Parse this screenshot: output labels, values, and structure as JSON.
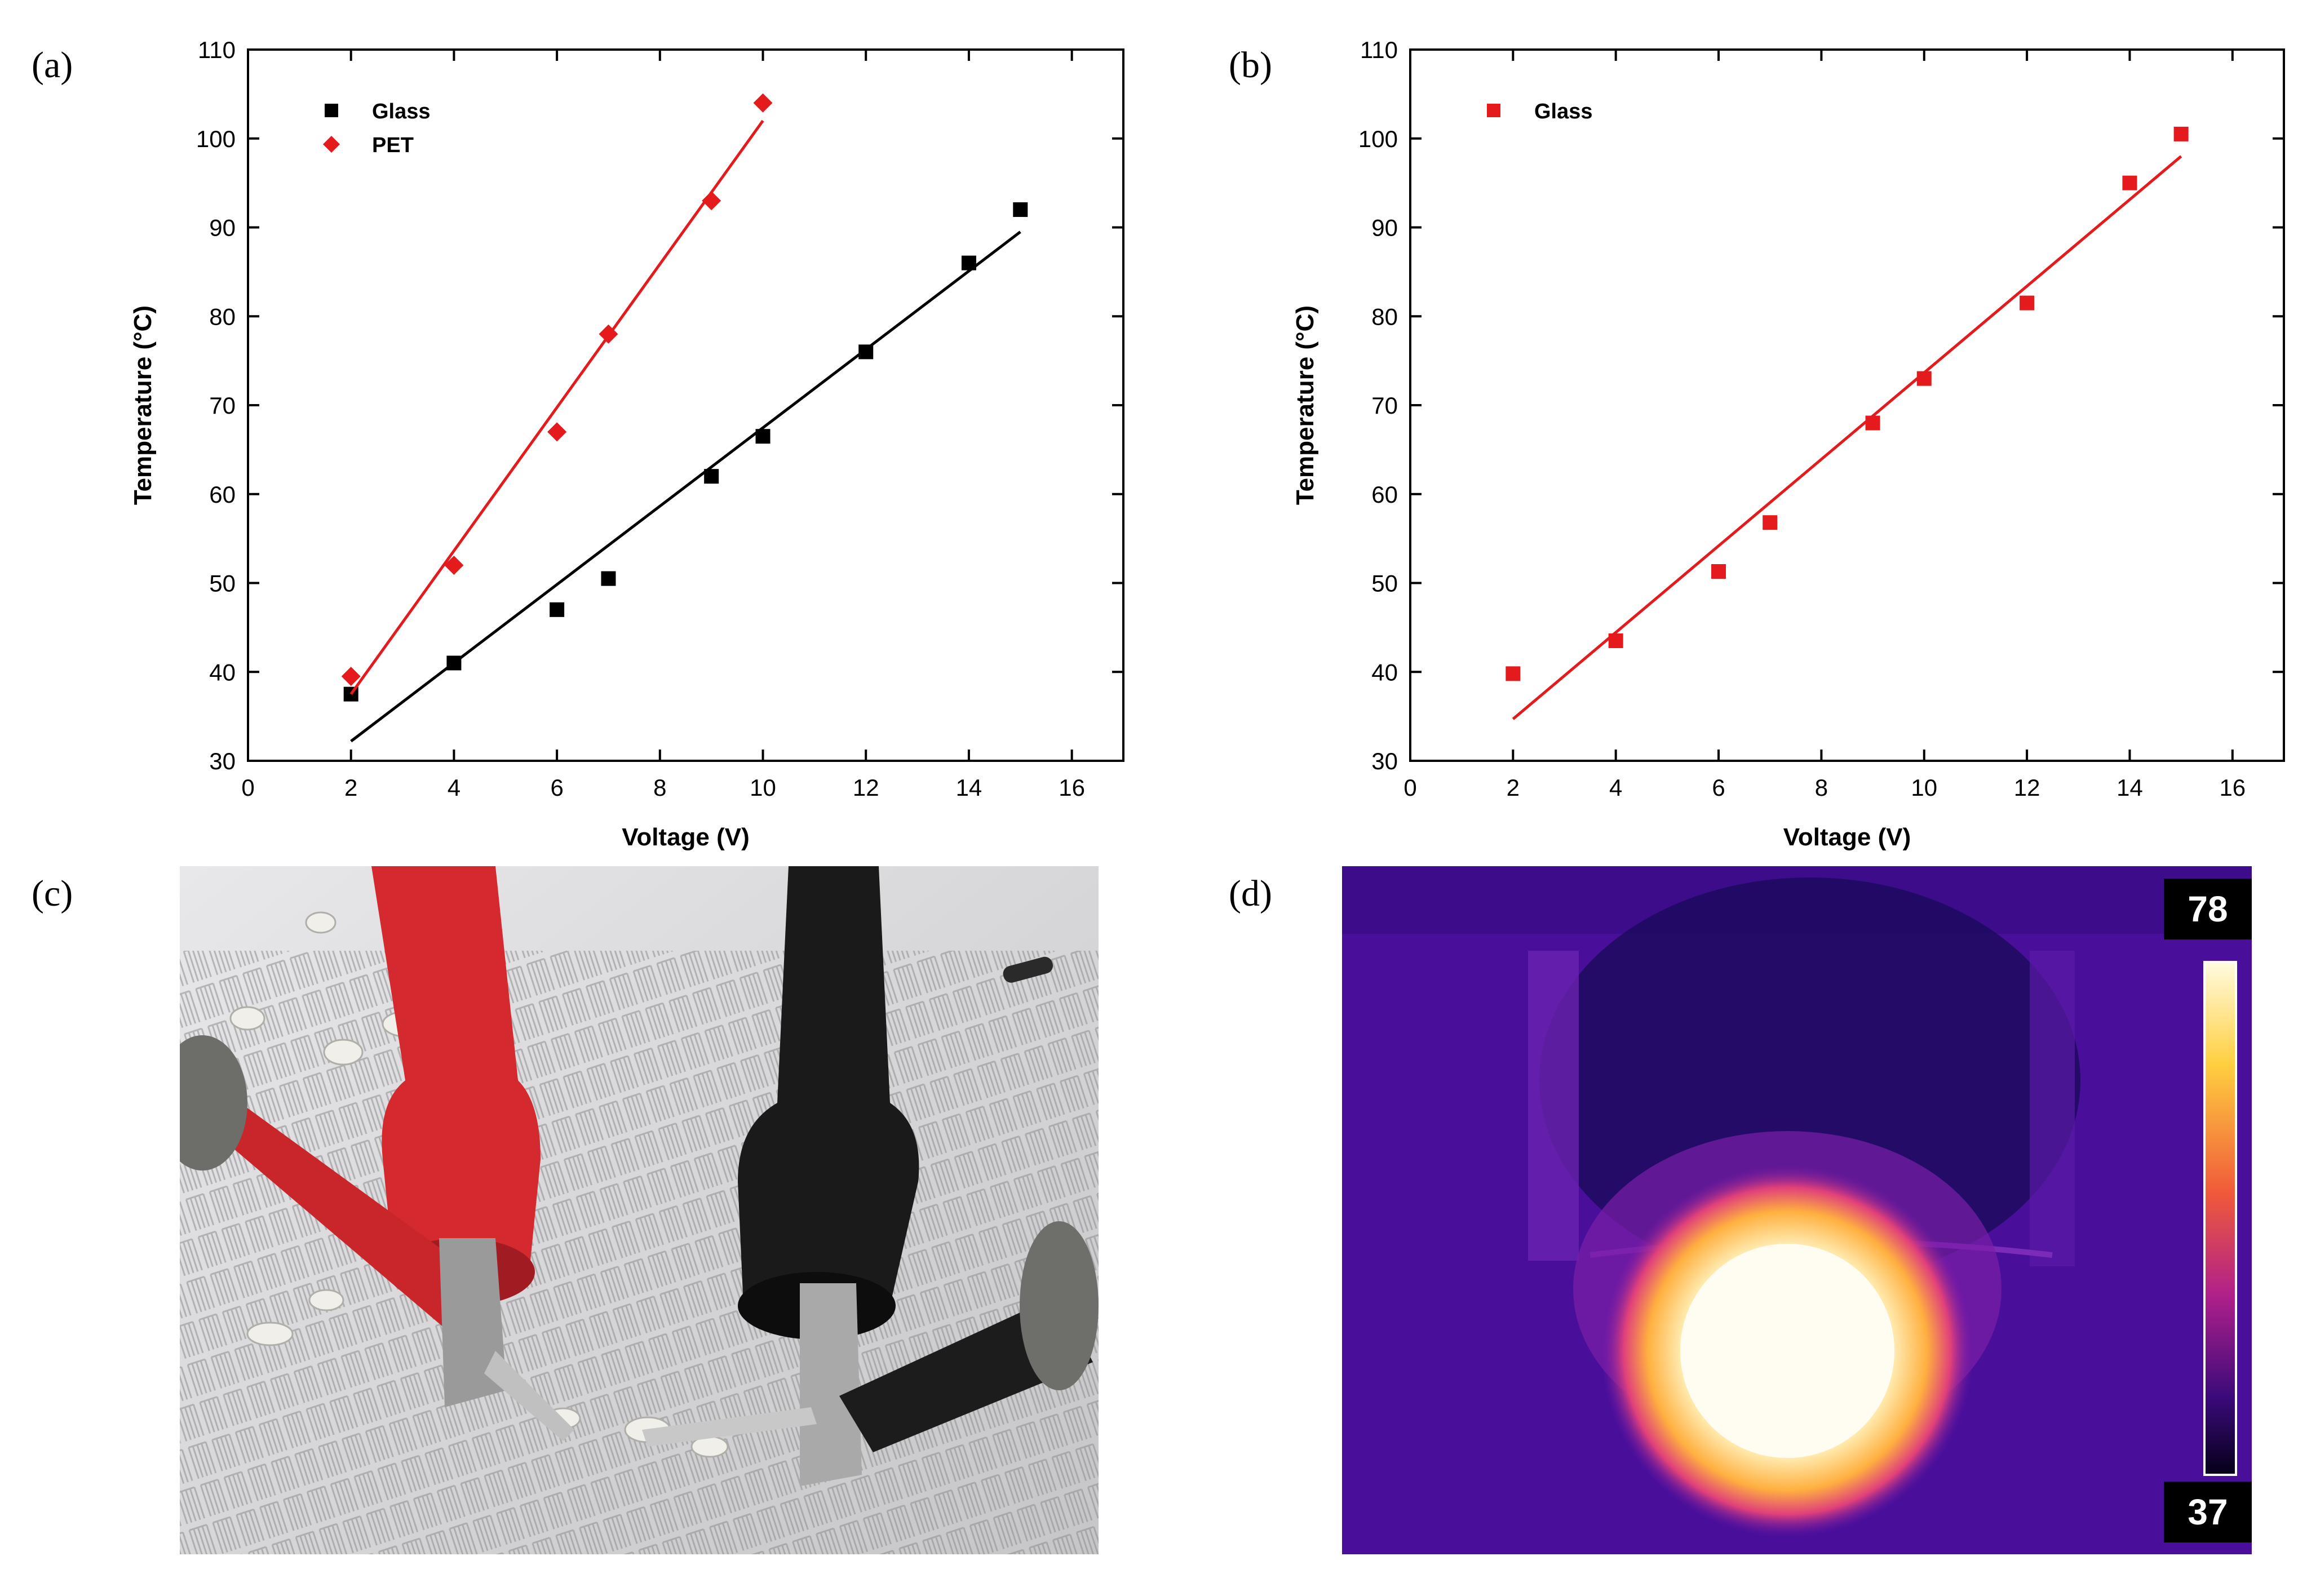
{
  "panel_labels": {
    "a": "(a)",
    "b": "(b)",
    "c": "(c)",
    "d": "(d)"
  },
  "chart_data": [
    {
      "type": "scatter",
      "xlabel": "Voltage (V)",
      "ylabel": "Temperature (°C)",
      "xlim": [
        0,
        17
      ],
      "ylim": [
        30,
        110
      ],
      "xticks": [
        "0",
        "2",
        "4",
        "6",
        "8",
        "10",
        "12",
        "14",
        "16"
      ],
      "yticks": [
        "30",
        "40",
        "50",
        "60",
        "70",
        "80",
        "90",
        "100",
        "110"
      ],
      "legend_position": "top-left",
      "series": [
        {
          "name": "Glass",
          "marker": "square",
          "color": "#000000",
          "x": [
            2,
            4,
            6,
            7,
            9,
            10,
            12,
            14,
            15
          ],
          "y": [
            37.5,
            41,
            47,
            50.5,
            62,
            66.5,
            76,
            86,
            92
          ],
          "fit_line": {
            "x": [
              2,
              15
            ],
            "y": [
              32.2,
              89.5
            ]
          }
        },
        {
          "name": "PET",
          "marker": "diamond",
          "color": "#e41a1c",
          "x": [
            2,
            4,
            6,
            7,
            9,
            10
          ],
          "y": [
            39.5,
            52,
            67,
            78,
            93,
            104
          ],
          "fit_line": {
            "x": [
              2,
              10
            ],
            "y": [
              37.5,
              102
            ]
          }
        }
      ]
    },
    {
      "type": "scatter",
      "xlabel": "Voltage (V)",
      "ylabel": "Temperature (°C)",
      "xlim": [
        0,
        17
      ],
      "ylim": [
        30,
        110
      ],
      "xticks": [
        "0",
        "2",
        "4",
        "6",
        "8",
        "10",
        "12",
        "14",
        "16"
      ],
      "yticks": [
        "30",
        "40",
        "50",
        "60",
        "70",
        "80",
        "90",
        "100",
        "110"
      ],
      "legend_position": "top-left",
      "series": [
        {
          "name": "Glass",
          "marker": "square",
          "color": "#e41a1c",
          "x": [
            2,
            4,
            6,
            7,
            9,
            10,
            12,
            14,
            15
          ],
          "y": [
            39.8,
            43.5,
            51.3,
            56.8,
            68,
            73,
            81.5,
            95,
            100.5
          ],
          "fit_line": {
            "x": [
              2,
              15
            ],
            "y": [
              34.7,
              98
            ]
          }
        }
      ]
    }
  ],
  "thermal_scale": {
    "max_label": "78",
    "min_label": "37"
  },
  "colors": {
    "probe_red": "#d42a2f",
    "probe_black": "#1a1a1a",
    "thermal_bg": "#4a0f9a"
  }
}
